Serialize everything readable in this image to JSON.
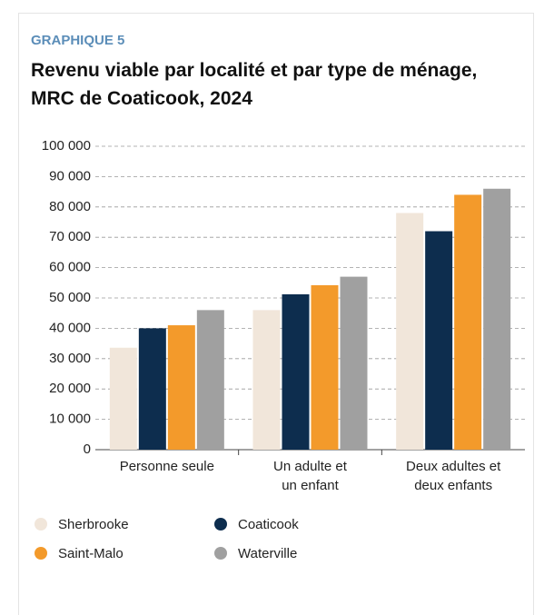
{
  "chart_data": {
    "type": "bar",
    "kicker": "GRAPHIQUE 5",
    "title": "Revenu viable par localité et par type de ménage, MRC de Coaticook, 2024",
    "categories": [
      "Personne seule",
      "Un adulte et\nun enfant",
      "Deux adultes et\ndeux enfants"
    ],
    "series": [
      {
        "name": "Sherbrooke",
        "color": "#f1e6da",
        "values": [
          33600,
          46000,
          78000
        ]
      },
      {
        "name": "Coaticook",
        "color": "#0d2d4e",
        "values": [
          40000,
          51200,
          72000
        ]
      },
      {
        "name": "Saint-Malo",
        "color": "#f39a2b",
        "values": [
          41000,
          54200,
          84000
        ]
      },
      {
        "name": "Waterville",
        "color": "#a0a0a0",
        "values": [
          46000,
          57000,
          86000
        ]
      }
    ],
    "ylim": [
      0,
      100000
    ],
    "yticks": [
      0,
      {
        "value": 10000,
        "label": "10 000"
      },
      {
        "value": 20000,
        "label": "20 000"
      },
      {
        "value": 30000,
        "label": "30 000"
      },
      {
        "value": 40000,
        "label": "40 000"
      },
      {
        "value": 50000,
        "label": "50 000"
      },
      {
        "value": 60000,
        "label": "60 000"
      },
      {
        "value": 70000,
        "label": "70 000"
      },
      {
        "value": 80000,
        "label": "80 000"
      },
      {
        "value": 90000,
        "label": "90 000"
      },
      {
        "value": 100000,
        "label": "100 000"
      }
    ],
    "grid": true
  }
}
